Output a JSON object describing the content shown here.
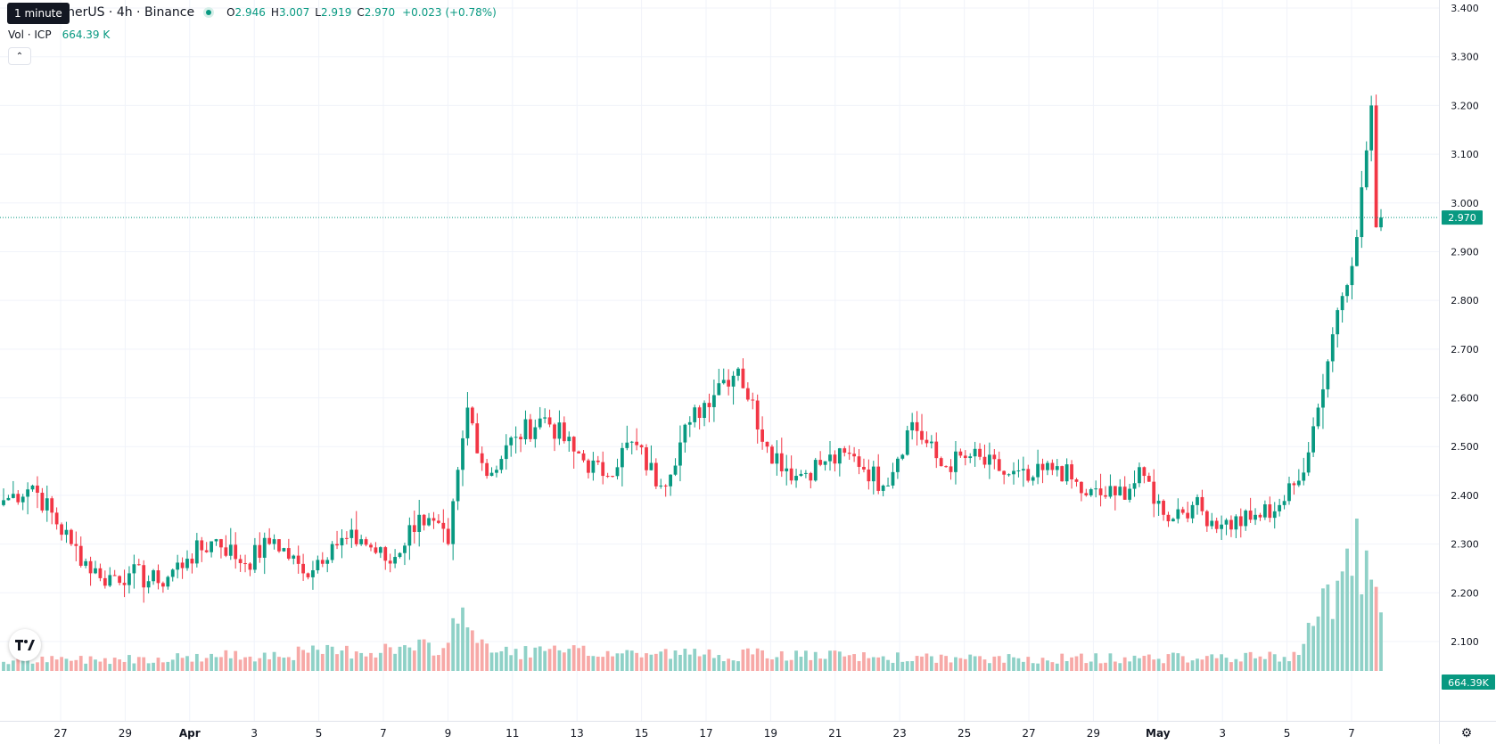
{
  "legend": {
    "symbol": "etherUS · 4h · Binance",
    "o_label": "O",
    "o": "2.946",
    "h_label": "H",
    "h": "3.007",
    "l_label": "L",
    "l": "2.919",
    "c_label": "C",
    "c": "2.970",
    "change": "+0.023 (+0.78%)",
    "vol_label": "Vol · ICP",
    "vol_value": "664.39 K"
  },
  "tooltip": "1 minute",
  "colors": {
    "up": "#089981",
    "down": "#f23645",
    "up_vol": "#8fd1c7",
    "down_vol": "#f7a9a7",
    "grid": "#f0f3fa"
  },
  "icons": {
    "collapse": "chevron-up-icon",
    "logo": "tradingview-logo-icon",
    "settings": "gear-icon"
  },
  "chart_data": {
    "type": "candlestick",
    "price_axis": {
      "ticks": [
        "3.400",
        "3.300",
        "3.200",
        "3.100",
        "3.000",
        "2.900",
        "2.800",
        "2.700",
        "2.600",
        "2.500",
        "2.400",
        "2.300",
        "2.200",
        "2.100"
      ],
      "range": [
        2.1,
        3.4
      ]
    },
    "time_axis": {
      "labels": [
        "27",
        "29",
        "Apr",
        "3",
        "5",
        "7",
        "9",
        "11",
        "13",
        "15",
        "17",
        "19",
        "21",
        "23",
        "25",
        "27",
        "29",
        "May",
        "3",
        "5",
        "7"
      ],
      "bold": [
        "Apr",
        "May"
      ]
    },
    "last_price_label": "2.970",
    "last_volume_label": "664.39K",
    "close_anchors": [
      [
        0,
        2.39
      ],
      [
        6,
        2.42
      ],
      [
        14,
        2.3
      ],
      [
        20,
        2.23
      ],
      [
        26,
        2.24
      ],
      [
        32,
        2.22
      ],
      [
        38,
        2.27
      ],
      [
        44,
        2.31
      ],
      [
        50,
        2.26
      ],
      [
        56,
        2.31
      ],
      [
        62,
        2.24
      ],
      [
        68,
        2.3
      ],
      [
        74,
        2.31
      ],
      [
        80,
        2.26
      ],
      [
        86,
        2.36
      ],
      [
        92,
        2.3
      ],
      [
        96,
        2.58
      ],
      [
        100,
        2.44
      ],
      [
        106,
        2.52
      ],
      [
        112,
        2.56
      ],
      [
        118,
        2.49
      ],
      [
        124,
        2.44
      ],
      [
        130,
        2.51
      ],
      [
        136,
        2.42
      ],
      [
        142,
        2.55
      ],
      [
        148,
        2.63
      ],
      [
        152,
        2.66
      ],
      [
        158,
        2.5
      ],
      [
        164,
        2.44
      ],
      [
        170,
        2.47
      ],
      [
        176,
        2.48
      ],
      [
        182,
        2.42
      ],
      [
        188,
        2.55
      ],
      [
        194,
        2.46
      ],
      [
        200,
        2.48
      ],
      [
        206,
        2.45
      ],
      [
        212,
        2.43
      ],
      [
        218,
        2.46
      ],
      [
        224,
        2.4
      ],
      [
        230,
        2.4
      ],
      [
        236,
        2.44
      ],
      [
        240,
        2.36
      ],
      [
        246,
        2.38
      ],
      [
        252,
        2.34
      ],
      [
        258,
        2.35
      ],
      [
        264,
        2.38
      ],
      [
        268,
        2.43
      ],
      [
        272,
        2.58
      ],
      [
        276,
        2.78
      ],
      [
        280,
        2.93
      ],
      [
        283,
        3.2
      ],
      [
        284,
        2.95
      ],
      [
        285,
        2.97
      ]
    ],
    "volume_anchors": [
      [
        0,
        0.05
      ],
      [
        40,
        0.07
      ],
      [
        92,
        0.12
      ],
      [
        94,
        0.35
      ],
      [
        100,
        0.1
      ],
      [
        160,
        0.08
      ],
      [
        200,
        0.06
      ],
      [
        268,
        0.07
      ],
      [
        272,
        0.4
      ],
      [
        276,
        0.42
      ],
      [
        280,
        0.55
      ],
      [
        283,
        0.55
      ],
      [
        285,
        0.22
      ]
    ]
  }
}
